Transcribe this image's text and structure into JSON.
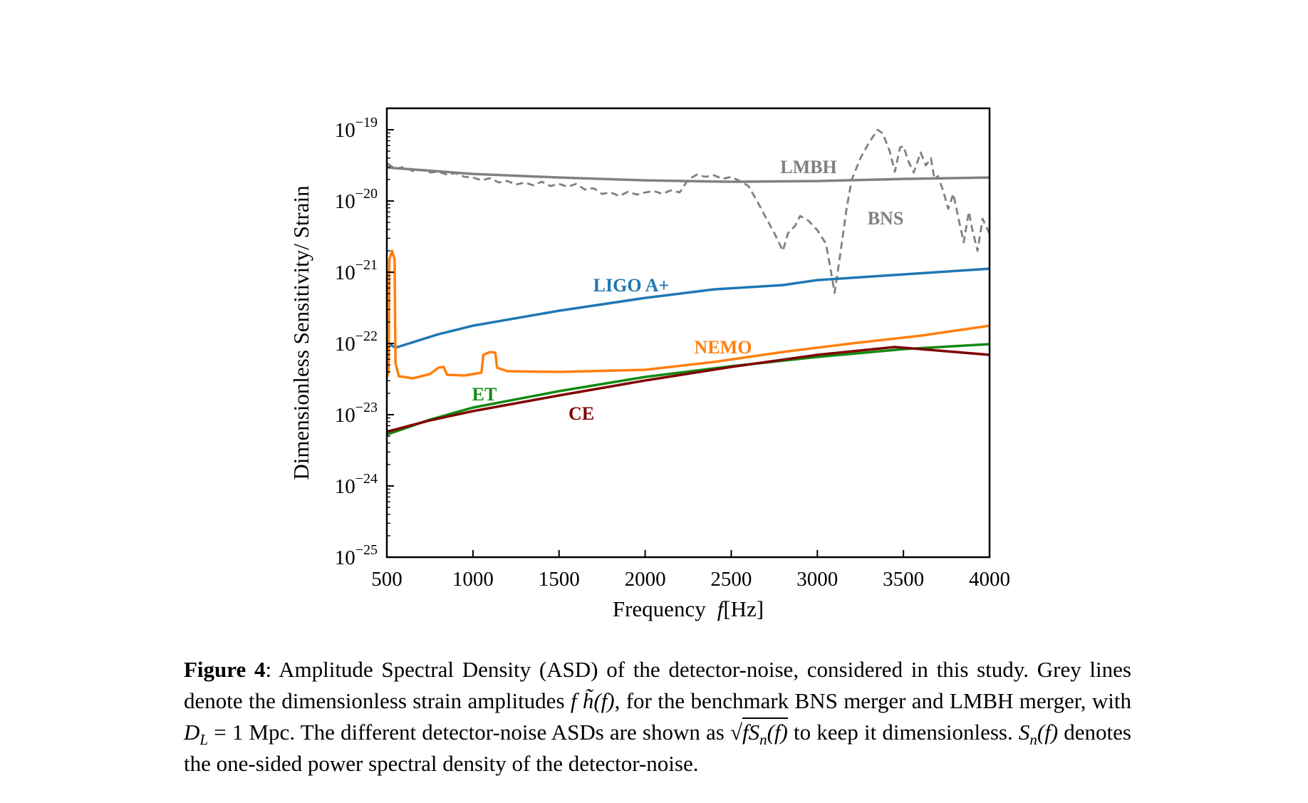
{
  "chart_data": {
    "type": "line",
    "title": "",
    "xlabel": "Frequency",
    "xlabel_var": "f",
    "xlabel_unit": "[Hz]",
    "ylabel": "Dimensionless Sensitivity/ Strain",
    "xlim": [
      500,
      4000
    ],
    "ylim": [
      1e-25,
      2e-19
    ],
    "yscale": "log",
    "grid": false,
    "legend": "none (inline labels)",
    "xticks": [
      "500",
      "1000",
      "1500",
      "2000",
      "2500",
      "3000",
      "3500",
      "4000"
    ],
    "yticks": [
      {
        "base": "10",
        "exp": "−19",
        "value": 1e-19
      },
      {
        "base": "10",
        "exp": "−20",
        "value": 1e-20
      },
      {
        "base": "10",
        "exp": "−21",
        "value": 1e-21
      },
      {
        "base": "10",
        "exp": "−22",
        "value": 1e-22
      },
      {
        "base": "10",
        "exp": "−23",
        "value": 1e-23
      },
      {
        "base": "10",
        "exp": "−24",
        "value": 1e-24
      },
      {
        "base": "10",
        "exp": "−25",
        "value": 1e-25
      }
    ],
    "series": [
      {
        "name": "LMBH",
        "color": "#808080",
        "dash": false,
        "x": [
          500,
          1000,
          1500,
          2000,
          2500,
          3000,
          3500,
          4000
        ],
        "log10_y": [
          -19.53,
          -19.62,
          -19.67,
          -19.71,
          -19.73,
          -19.72,
          -19.69,
          -19.67
        ]
      },
      {
        "name": "BNS",
        "color": "#808080",
        "dash": true,
        "x": [
          500,
          550,
          600,
          650,
          700,
          750,
          800,
          850,
          900,
          950,
          1000,
          1050,
          1100,
          1150,
          1200,
          1250,
          1300,
          1350,
          1400,
          1450,
          1500,
          1550,
          1600,
          1650,
          1700,
          1750,
          1800,
          1850,
          1900,
          1950,
          2000,
          2050,
          2100,
          2150,
          2200,
          2250,
          2300,
          2350,
          2400,
          2450,
          2500,
          2550,
          2600,
          2650,
          2700,
          2750,
          2800,
          2830,
          2870,
          2900,
          2950,
          3000,
          3050,
          3080,
          3100,
          3130,
          3170,
          3200,
          3250,
          3300,
          3350,
          3380,
          3420,
          3450,
          3480,
          3500,
          3530,
          3560,
          3600,
          3630,
          3660,
          3680,
          3700,
          3730,
          3760,
          3790,
          3820,
          3850,
          3880,
          3900,
          3930,
          3960,
          4000
        ],
        "log10_y": [
          -19.47,
          -19.55,
          -19.52,
          -19.58,
          -19.56,
          -19.6,
          -19.59,
          -19.63,
          -19.61,
          -19.66,
          -19.67,
          -19.71,
          -19.68,
          -19.74,
          -19.72,
          -19.77,
          -19.74,
          -19.78,
          -19.73,
          -19.79,
          -19.76,
          -19.8,
          -19.76,
          -19.84,
          -19.82,
          -19.9,
          -19.88,
          -19.93,
          -19.87,
          -19.91,
          -19.88,
          -19.86,
          -19.9,
          -19.85,
          -19.88,
          -19.7,
          -19.63,
          -19.66,
          -19.64,
          -19.69,
          -19.66,
          -19.72,
          -19.79,
          -20.0,
          -20.23,
          -20.45,
          -20.7,
          -20.45,
          -20.35,
          -20.21,
          -20.28,
          -20.41,
          -20.6,
          -21.0,
          -21.29,
          -20.8,
          -20.1,
          -19.7,
          -19.4,
          -19.18,
          -19.0,
          -19.05,
          -19.3,
          -19.59,
          -19.25,
          -19.23,
          -19.45,
          -19.6,
          -19.32,
          -19.5,
          -19.4,
          -19.7,
          -19.65,
          -19.85,
          -20.11,
          -19.9,
          -20.25,
          -20.58,
          -20.15,
          -20.4,
          -20.7,
          -20.25,
          -20.46
        ]
      },
      {
        "name": "LIGO A+",
        "color": "#1f77b4",
        "dash": false,
        "x": [
          500,
          550,
          800,
          1000,
          1500,
          2000,
          2400,
          2800,
          3000,
          3500,
          4000
        ],
        "log10_y": [
          -21.99,
          -22.06,
          -21.87,
          -21.75,
          -21.54,
          -21.36,
          -21.24,
          -21.18,
          -21.11,
          -21.03,
          -20.95
        ]
      },
      {
        "name": "NEMO",
        "color": "#ff7f0e",
        "dash": false,
        "x": [
          500,
          510,
          515,
          530,
          545,
          550,
          570,
          650,
          750,
          800,
          830,
          850,
          950,
          1050,
          1060,
          1100,
          1130,
          1140,
          1200,
          1500,
          2000,
          2400,
          2800,
          3200,
          3600,
          4000
        ],
        "log10_y": [
          -22.48,
          -22.4,
          -20.82,
          -20.7,
          -20.82,
          -22.28,
          -22.46,
          -22.49,
          -22.43,
          -22.34,
          -22.33,
          -22.44,
          -22.45,
          -22.41,
          -22.16,
          -22.12,
          -22.13,
          -22.34,
          -22.39,
          -22.4,
          -22.37,
          -22.26,
          -22.12,
          -22.0,
          -21.89,
          -21.75
        ]
      },
      {
        "name": "ET",
        "color": "#138a13",
        "dash": false,
        "x": [
          500,
          750,
          1000,
          1500,
          2000,
          2500,
          3000,
          3500,
          4000
        ],
        "log10_y": [
          -23.28,
          -23.07,
          -22.9,
          -22.67,
          -22.47,
          -22.32,
          -22.19,
          -22.08,
          -22.01
        ]
      },
      {
        "name": "CE",
        "color": "#800000",
        "dash": false,
        "x": [
          500,
          750,
          1000,
          1500,
          2000,
          2500,
          3000,
          3450,
          3800,
          4000
        ],
        "log10_y": [
          -23.24,
          -23.08,
          -22.95,
          -22.73,
          -22.52,
          -22.33,
          -22.16,
          -22.05,
          -22.12,
          -22.16
        ]
      }
    ]
  },
  "caption": {
    "parts": [
      "Figure 4",
      ": Amplitude Spectral Density (ASD) of the detector-noise, considered in this study. Grey lines denote the dimensionless strain amplitudes ",
      "f h̃(f)",
      ", for the benchmark BNS merger and LMBH merger, with ",
      "D",
      "L",
      " = 1 Mpc. The different detector-noise ASDs are shown as ",
      "√",
      "fS",
      "n",
      "(f)",
      " to keep it dimensionless.  ",
      "S",
      "n",
      "(f)",
      " denotes the one-sided power spectral density of the detector-noise."
    ]
  }
}
